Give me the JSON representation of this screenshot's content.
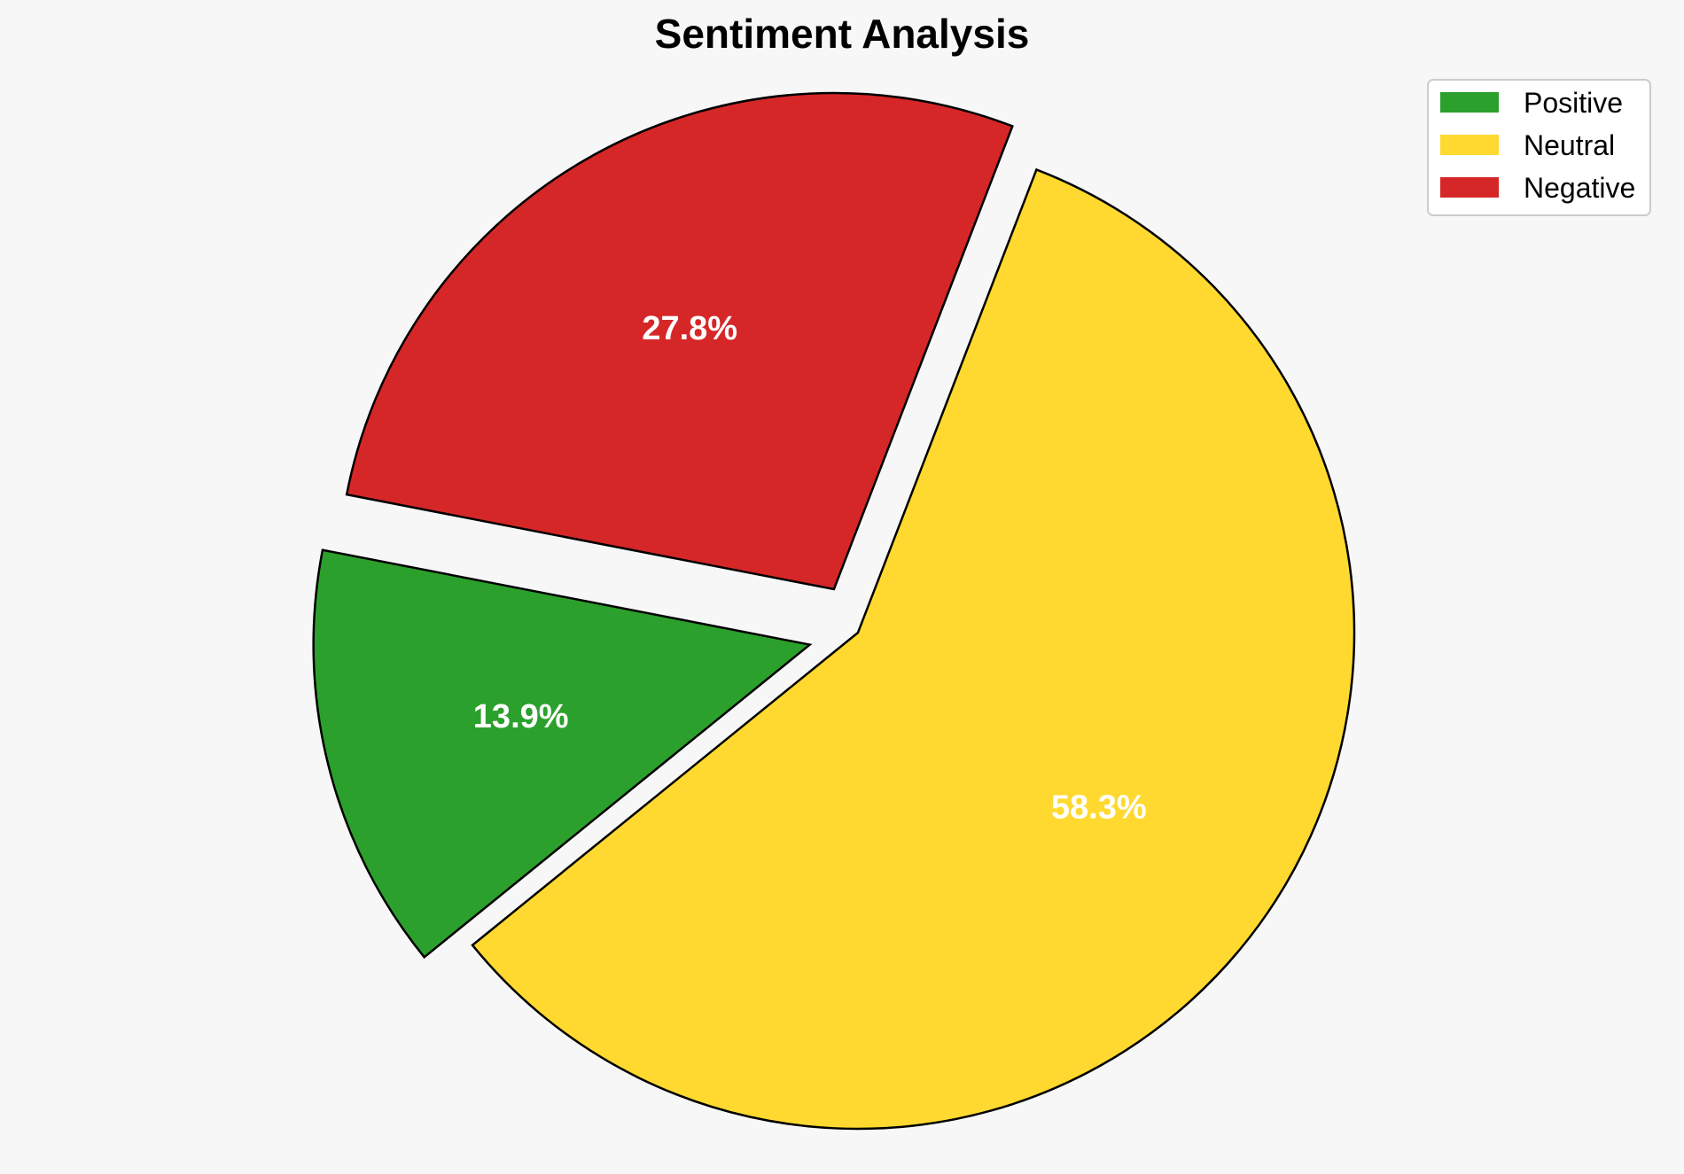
{
  "chart_data": {
    "type": "pie",
    "title": "Sentiment Analysis",
    "slices": [
      {
        "label": "Positive",
        "value": 13.9,
        "display": "13.9%",
        "color": "#2ca02c",
        "exploded": true
      },
      {
        "label": "Neutral",
        "value": 58.3,
        "display": "58.3%",
        "color": "#ffd92f",
        "exploded": false
      },
      {
        "label": "Negative",
        "value": 27.8,
        "display": "27.8%",
        "color": "#d62728",
        "exploded": true
      }
    ],
    "legend_position": "top-right",
    "label_color": "#ffffff",
    "edge_color": "#000000"
  }
}
